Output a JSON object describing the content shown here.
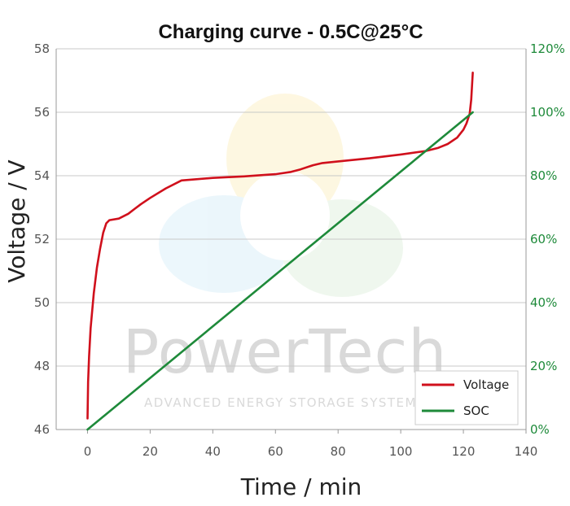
{
  "chart_data": {
    "type": "line",
    "title": "Charging curve - 0.5C@25°C",
    "xlabel": "Time / min",
    "ylabel": "Voltage / V",
    "xlim": [
      -10,
      140
    ],
    "ylim": [
      46,
      58
    ],
    "y2lim": [
      0,
      120
    ],
    "x_ticks": [
      "0",
      "20",
      "40",
      "60",
      "80",
      "100",
      "120",
      "140"
    ],
    "y_ticks": [
      "46",
      "48",
      "50",
      "52",
      "54",
      "56",
      "58"
    ],
    "y2_ticks": [
      "0%",
      "20%",
      "40%",
      "60%",
      "80%",
      "100%",
      "120%"
    ],
    "grid": "horizontal",
    "legend_position": "bottom-right",
    "series": [
      {
        "name": "Voltage",
        "axis": "left",
        "color": "#d0101c",
        "points": [
          [
            0,
            46.35
          ],
          [
            0.2,
            47.5
          ],
          [
            0.5,
            48.3
          ],
          [
            1,
            49.2
          ],
          [
            2,
            50.3
          ],
          [
            3,
            51.1
          ],
          [
            4,
            51.7
          ],
          [
            5,
            52.2
          ],
          [
            6,
            52.5
          ],
          [
            7,
            52.6
          ],
          [
            10,
            52.65
          ],
          [
            13,
            52.8
          ],
          [
            15,
            52.95
          ],
          [
            17,
            53.1
          ],
          [
            20,
            53.3
          ],
          [
            25,
            53.6
          ],
          [
            30,
            53.85
          ],
          [
            40,
            53.93
          ],
          [
            50,
            53.98
          ],
          [
            60,
            54.05
          ],
          [
            65,
            54.12
          ],
          [
            68,
            54.2
          ],
          [
            72,
            54.33
          ],
          [
            75,
            54.4
          ],
          [
            80,
            54.45
          ],
          [
            90,
            54.55
          ],
          [
            100,
            54.67
          ],
          [
            108,
            54.78
          ],
          [
            112,
            54.88
          ],
          [
            115,
            55.0
          ],
          [
            118,
            55.2
          ],
          [
            120,
            55.45
          ],
          [
            121,
            55.65
          ],
          [
            122,
            55.95
          ],
          [
            122.5,
            56.4
          ],
          [
            123,
            57.25
          ]
        ]
      },
      {
        "name": "SOC",
        "axis": "right",
        "color": "#1e8a3a",
        "points": [
          [
            0,
            0
          ],
          [
            123,
            100
          ]
        ]
      }
    ]
  },
  "watermark": {
    "brand": "PowerTech",
    "tagline": "ADVANCED ENERGY STORAGE SYSTEMS"
  }
}
